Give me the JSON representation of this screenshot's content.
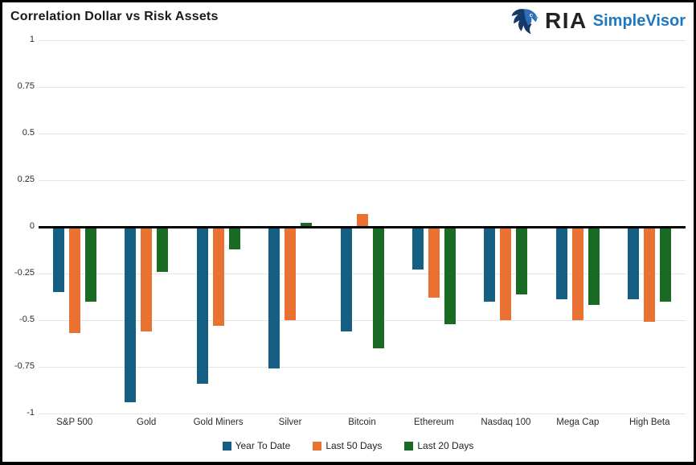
{
  "header": {
    "title": "Correlation Dollar vs Risk Assets",
    "logo": {
      "ria_text": "RIA",
      "product_text": "SimpleVisor",
      "eagle_icon": "eagle-head-icon",
      "ria_color": "#232323",
      "product_color": "#1d78c1"
    }
  },
  "chart_data": {
    "type": "bar",
    "title": "Correlation Dollar vs Risk Assets",
    "xlabel": "",
    "ylabel": "",
    "ylim": [
      -1,
      1
    ],
    "y_ticks": [
      1,
      0.75,
      0.5,
      0.25,
      0,
      -0.25,
      -0.5,
      -0.75,
      -1
    ],
    "y_tick_labels": [
      "1",
      "0.75",
      "0.5",
      "0.25",
      "0",
      "-0.25",
      "-0.5",
      "-0.75",
      "-1"
    ],
    "grid": "horizontal",
    "legend_position": "bottom",
    "categories": [
      "S&P 500",
      "Gold",
      "Gold Miners",
      "Silver",
      "Bitcoin",
      "Ethereum",
      "Nasdaq 100",
      "Mega Cap",
      "High Beta"
    ],
    "series": [
      {
        "name": "Year To Date",
        "color": "#156082",
        "values": [
          -0.35,
          -0.94,
          -0.84,
          -0.76,
          -0.56,
          -0.23,
          -0.4,
          -0.39,
          -0.39
        ]
      },
      {
        "name": "Last 50 Days",
        "color": "#E97132",
        "values": [
          -0.57,
          -0.56,
          -0.53,
          -0.5,
          0.07,
          -0.38,
          -0.5,
          -0.5,
          -0.51
        ]
      },
      {
        "name": "Last 20 Days",
        "color": "#196B24",
        "values": [
          -0.4,
          -0.24,
          -0.12,
          0.02,
          -0.65,
          -0.52,
          -0.36,
          -0.42,
          -0.4
        ]
      }
    ],
    "style": {
      "grid_color": "#e4e4e4",
      "zero_line_color": "#000000",
      "axis_text_color": "#2b2b2b"
    }
  }
}
